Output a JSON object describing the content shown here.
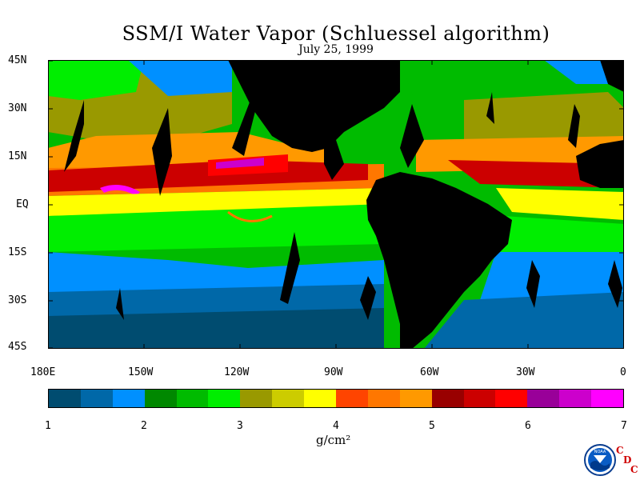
{
  "title": "SSM/I Water Vapor (Schluessel algorithm)",
  "date": "July 25, 1999",
  "lat_labels": [
    "45N",
    "30N",
    "15N",
    "EQ",
    "15S",
    "30S",
    "45S"
  ],
  "lon_labels": [
    "180E",
    "150W",
    "120W",
    "90W",
    "60W",
    "30W",
    "0"
  ],
  "colorbar": {
    "colors": [
      "#004c70",
      "#0068a8",
      "#0090ff",
      "#008800",
      "#00bb00",
      "#00ee00",
      "#999900",
      "#cccc00",
      "#ffff00",
      "#ff4400",
      "#ff7700",
      "#ff9900",
      "#990000",
      "#cc0000",
      "#ff0000",
      "#990099",
      "#cc00cc",
      "#ff00ff"
    ],
    "ticks": [
      "1",
      "2",
      "3",
      "4",
      "5",
      "6",
      "7"
    ],
    "units": "g/cm²"
  },
  "logo": {
    "noaa": "NOAA",
    "cdc": [
      "C",
      "D",
      "C"
    ]
  }
}
